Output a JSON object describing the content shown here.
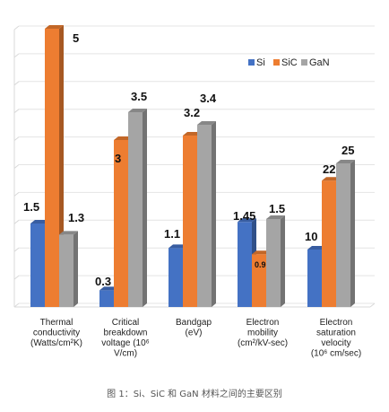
{
  "chart_data": {
    "type": "bar",
    "title": "",
    "caption": "图 1：Si、SiC 和 GaN 材料之间的主要区别",
    "categories": [
      [
        "Thermal",
        "conductivity",
        "(Watts/cm²K)"
      ],
      [
        "Critical",
        "breakdown",
        "voltage (10⁶",
        "V/cm)"
      ],
      [
        "Bandgap",
        "(eV)"
      ],
      [
        "Electron",
        "mobility",
        "(cm²/kV-sec)"
      ],
      [
        "Electron",
        "saturation",
        "velocity",
        "(10⁶ cm/sec)"
      ]
    ],
    "series": [
      {
        "name": "Si",
        "color": "#4472c4",
        "values": [
          1.5,
          0.3,
          1.1,
          1.45,
          10
        ],
        "labels": [
          "1.5",
          "0.3",
          "1.1",
          "1.45",
          "10"
        ]
      },
      {
        "name": "SiC",
        "color": "#ed7d31",
        "values": [
          5,
          3,
          3.2,
          0.9,
          22
        ],
        "labels": [
          "5",
          "3",
          "3.2",
          "0.9",
          "22"
        ]
      },
      {
        "name": "GaN",
        "color": "#a5a5a5",
        "values": [
          1.3,
          3.5,
          3.4,
          1.5,
          25
        ],
        "labels": [
          "1.3",
          "3.5",
          "3.4",
          "1.5",
          "25"
        ]
      }
    ],
    "legend": "top-right",
    "grid": true,
    "axes": "independent per category, no printed tick labels"
  }
}
